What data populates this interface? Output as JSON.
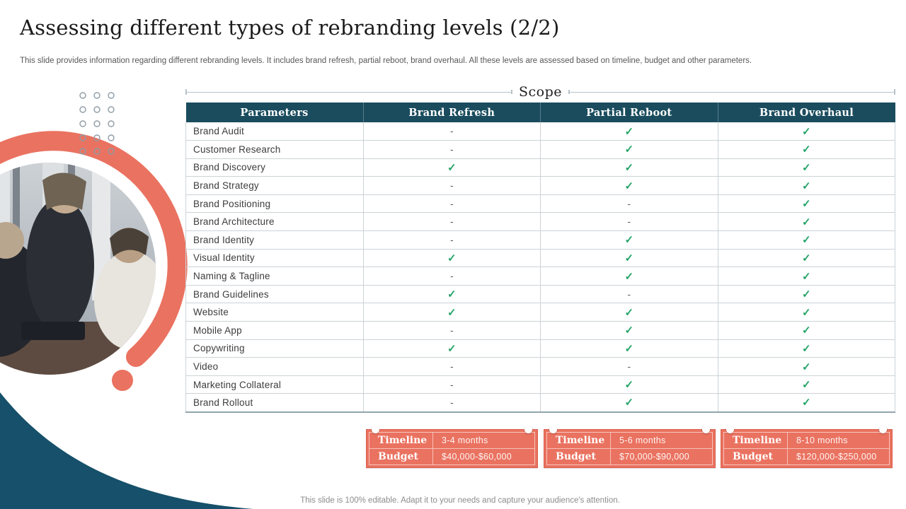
{
  "slide": {
    "title": "Assessing different types of rebranding levels (2/2)",
    "subtitle": "This slide provides information regarding different rebranding levels. It includes brand refresh, partial reboot, brand overhaul. All these levels are assessed based on timeline, budget and other parameters.",
    "footer_note": "This slide is 100% editable. Adapt it to your needs and capture your audience's attention."
  },
  "scope_label": "Scope",
  "symbols": {
    "check": "✓",
    "dash": "-"
  },
  "table": {
    "headers": [
      "Parameters",
      "Brand Refresh",
      "Partial Reboot",
      "Brand Overhaul"
    ],
    "rows": [
      {
        "label": "Brand Audit",
        "values": [
          "-",
          "✓",
          "✓"
        ]
      },
      {
        "label": "Customer Research",
        "values": [
          "-",
          "✓",
          "✓"
        ]
      },
      {
        "label": "Brand Discovery",
        "values": [
          "✓",
          "✓",
          "✓"
        ]
      },
      {
        "label": "Brand Strategy",
        "values": [
          "-",
          "✓",
          "✓"
        ]
      },
      {
        "label": "Brand Positioning",
        "values": [
          "-",
          "-",
          "✓"
        ]
      },
      {
        "label": "Brand Architecture",
        "values": [
          "-",
          "-",
          "✓"
        ]
      },
      {
        "label": "Brand Identity",
        "values": [
          "-",
          "✓",
          "✓"
        ]
      },
      {
        "label": "Visual Identity",
        "values": [
          "✓",
          "✓",
          "✓"
        ]
      },
      {
        "label": "Naming & Tagline",
        "values": [
          "-",
          "✓",
          "✓"
        ]
      },
      {
        "label": "Brand Guidelines",
        "values": [
          "✓",
          "-",
          "✓"
        ]
      },
      {
        "label": "Website",
        "values": [
          "✓",
          "✓",
          "✓"
        ]
      },
      {
        "label": "Mobile App",
        "values": [
          "-",
          "✓",
          "✓"
        ]
      },
      {
        "label": "Copywriting",
        "values": [
          "✓",
          "✓",
          "✓"
        ]
      },
      {
        "label": "Video",
        "values": [
          "-",
          "-",
          "✓"
        ]
      },
      {
        "label": "Marketing Collateral",
        "values": [
          "-",
          "✓",
          "✓"
        ]
      },
      {
        "label": "Brand Rollout",
        "values": [
          "-",
          "✓",
          "✓"
        ]
      }
    ]
  },
  "summary_cards": [
    {
      "timeline_label": "Timeline",
      "timeline_value": "3-4 months",
      "budget_label": "Budget",
      "budget_value": "$40,000-$60,000"
    },
    {
      "timeline_label": "Timeline",
      "timeline_value": "5-6 months",
      "budget_label": "Budget",
      "budget_value": "$70,000-$90,000"
    },
    {
      "timeline_label": "Timeline",
      "timeline_value": "8-10 months",
      "budget_label": "Budget",
      "budget_value": "$120,000-$250,000"
    }
  ],
  "colors": {
    "header_teal": "#1a4c5e",
    "wedge_teal": "#16506a",
    "coral": "#ea7260",
    "check_green": "#24a467",
    "line_gray": "#b7c2c8"
  }
}
